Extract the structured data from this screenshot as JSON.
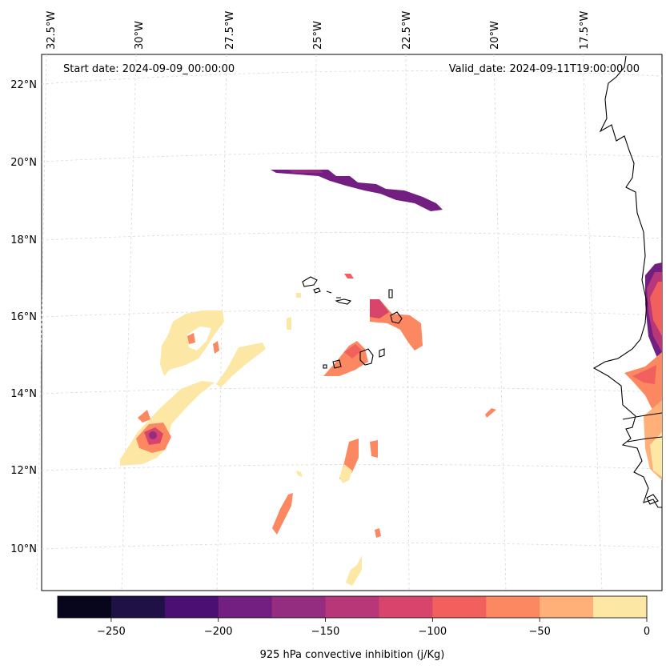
{
  "map": {
    "start_date": "Start date: 2024-09-09_00:00:00",
    "valid_date": "Valid_date: 2024-09-11T19:00:00.00",
    "lon_labels": [
      "32.5°W",
      "30°W",
      "27.5°W",
      "25°W",
      "22.5°W",
      "20°W",
      "17.5°W"
    ],
    "lat_labels": [
      "22°N",
      "20°N",
      "18°N",
      "16°N",
      "14°N",
      "12°N",
      "10°N"
    ]
  },
  "colorbar": {
    "label": "925 hPa convective inhibition (j/Kg)",
    "ticks": [
      "−250",
      "−200",
      "−150",
      "−100",
      "−50",
      "0"
    ],
    "colors": [
      "#07061c",
      "#1f1146",
      "#4b0f74",
      "#721f81",
      "#942c80",
      "#b73779",
      "#d8456c",
      "#f1605d",
      "#fb8861",
      "#feb078",
      "#fde7a5"
    ]
  }
}
